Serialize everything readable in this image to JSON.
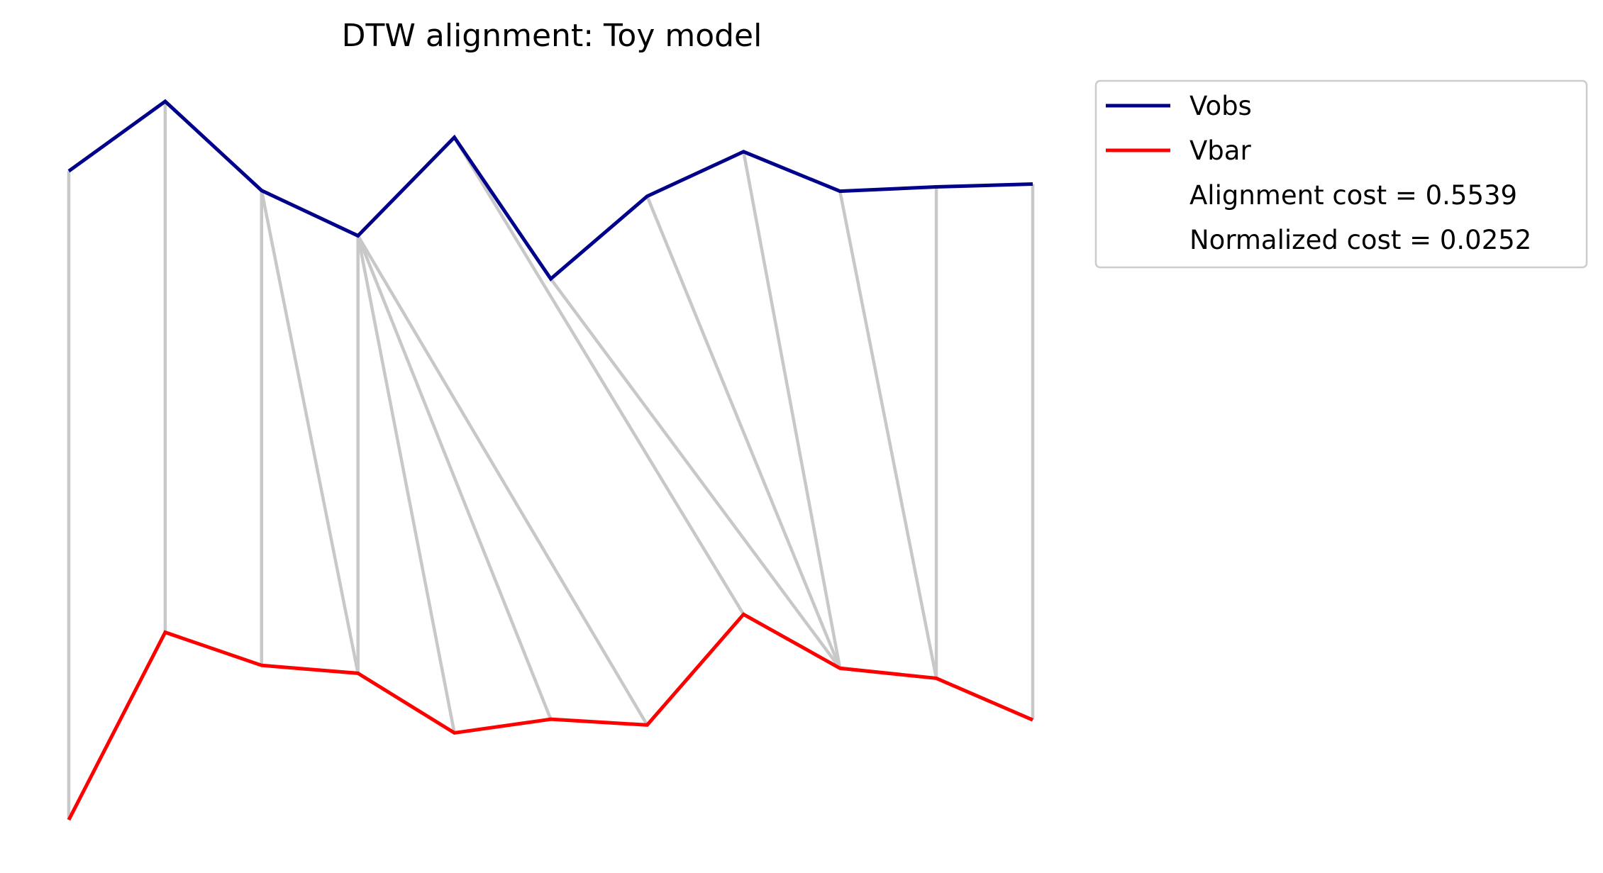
{
  "chart_data": {
    "type": "line",
    "title": "DTW alignment: Toy model",
    "xlabel": "",
    "ylabel": "",
    "axes_visible": false,
    "grid": false,
    "x": [
      0,
      1,
      2,
      3,
      4,
      5,
      6,
      7,
      8,
      9,
      10
    ],
    "series": [
      {
        "name": "Vobs",
        "color": "#00008b",
        "values": [
          0.903,
          1.0,
          0.876,
          0.813,
          0.95,
          0.753,
          0.868,
          0.93,
          0.875,
          0.881,
          0.885
        ]
      },
      {
        "name": "Vbar",
        "color": "#ff0000",
        "values": [
          0.0,
          0.261,
          0.215,
          0.204,
          0.121,
          0.14,
          0.132,
          0.286,
          0.211,
          0.197,
          0.139
        ]
      }
    ],
    "alignment_pairs": [
      [
        0,
        0
      ],
      [
        1,
        1
      ],
      [
        2,
        2
      ],
      [
        2,
        3
      ],
      [
        3,
        3
      ],
      [
        3,
        4
      ],
      [
        3,
        5
      ],
      [
        3,
        6
      ],
      [
        4,
        7
      ],
      [
        5,
        8
      ],
      [
        6,
        8
      ],
      [
        7,
        8
      ],
      [
        8,
        9
      ],
      [
        9,
        9
      ],
      [
        10,
        10
      ]
    ],
    "alignment_color": "#c8c8c8",
    "legend": {
      "position": "upper-right-outside",
      "entries": [
        {
          "label": "Vobs",
          "color": "#00008b",
          "line": true
        },
        {
          "label": "Vbar",
          "color": "#ff0000",
          "line": true
        },
        {
          "label": "Alignment cost = 0.5539",
          "line": false
        },
        {
          "label": "Normalized cost = 0.0252",
          "line": false
        }
      ]
    }
  }
}
